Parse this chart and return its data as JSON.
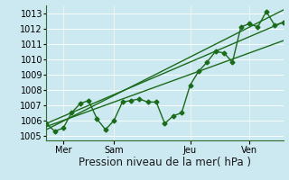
{
  "title": "Pression niveau de la mer( hPa )",
  "ylabel_ticks": [
    1005,
    1006,
    1007,
    1008,
    1009,
    1010,
    1011,
    1012,
    1013
  ],
  "ylim": [
    1004.7,
    1013.5
  ],
  "xlim": [
    0,
    28
  ],
  "background_color": "#cce8f0",
  "grid_color": "#aad4dc",
  "grid_color2": "#ffffff",
  "line_color": "#1a6b1a",
  "xtick_labels": [
    "Mer",
    "Sam",
    "Jeu",
    "Ven"
  ],
  "xtick_positions": [
    2,
    8,
    17,
    24
  ],
  "line1_x": [
    0,
    1,
    2,
    3,
    4,
    5,
    6,
    7,
    8,
    9,
    10,
    11,
    12,
    13,
    14,
    15,
    16,
    17,
    18,
    19,
    20,
    21,
    22,
    23,
    24,
    25,
    26,
    27,
    28
  ],
  "line1_y": [
    1005.8,
    1005.3,
    1005.5,
    1006.5,
    1007.1,
    1007.3,
    1006.1,
    1005.4,
    1006.0,
    1007.2,
    1007.3,
    1007.4,
    1007.2,
    1007.2,
    1005.8,
    1006.3,
    1006.5,
    1008.3,
    1009.2,
    1009.8,
    1010.5,
    1010.4,
    1009.8,
    1012.1,
    1012.3,
    1012.1,
    1013.1,
    1012.2,
    1012.4
  ],
  "line2_x": [
    0,
    28
  ],
  "line2_y": [
    1005.8,
    1012.4
  ],
  "line3_x": [
    0,
    28
  ],
  "line3_y": [
    1005.6,
    1011.2
  ],
  "line4_x": [
    0,
    28
  ],
  "line4_y": [
    1005.4,
    1013.2
  ],
  "marker": "D",
  "marker_size": 2.5,
  "linewidth": 1.0,
  "xlabel_fontsize": 8.5,
  "tick_fontsize": 7,
  "figsize": [
    3.2,
    2.0
  ],
  "dpi": 100
}
